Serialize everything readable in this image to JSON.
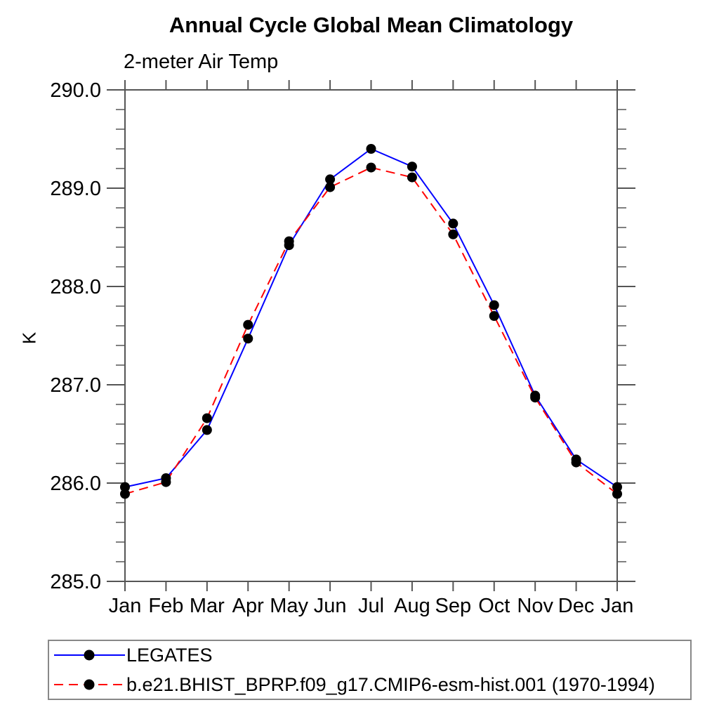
{
  "title": "Annual Cycle Global Mean Climatology",
  "subtitle": "2-meter Air Temp",
  "ylabel": "K",
  "colors": {
    "obs_line": "#0000ff",
    "model_line": "#ff0000",
    "marker": "#000000",
    "axis": "#555555",
    "text": "#000000",
    "legend_border": "#888888"
  },
  "legend": {
    "entries": [
      {
        "label": "LEGATES",
        "line_style": "solid",
        "color": "#0000ff",
        "marker": "black-dot"
      },
      {
        "label": "b.e21.BHIST_BPRP.f09_g17.CMIP6-esm-hist.001 (1970-1994)",
        "line_style": "dashed",
        "color": "#ff0000",
        "marker": "black-dot"
      }
    ]
  },
  "chart_data": {
    "type": "line",
    "title": "Annual Cycle Global Mean Climatology",
    "subtitle": "2-meter Air Temp",
    "xlabel": "",
    "ylabel": "K",
    "categories": [
      "Jan",
      "Feb",
      "Mar",
      "Apr",
      "May",
      "Jun",
      "Jul",
      "Aug",
      "Sep",
      "Oct",
      "Nov",
      "Dec",
      "Jan"
    ],
    "series": [
      {
        "name": "LEGATES",
        "color": "#0000ff",
        "style": "solid",
        "marker": "circle",
        "values": [
          285.96,
          286.05,
          286.54,
          287.47,
          288.42,
          289.09,
          289.4,
          289.22,
          288.64,
          287.81,
          286.89,
          286.24,
          285.96
        ]
      },
      {
        "name": "b.e21.BHIST_BPRP.f09_g17.CMIP6-esm-hist.001 (1970-1994)",
        "color": "#ff0000",
        "style": "dashed",
        "marker": "circle",
        "values": [
          285.89,
          286.01,
          286.66,
          287.61,
          288.46,
          289.01,
          289.21,
          289.11,
          288.53,
          287.7,
          286.87,
          286.21,
          285.89
        ]
      }
    ],
    "ylim": [
      285.0,
      290.0
    ],
    "yticks_major": [
      285.0,
      286.0,
      287.0,
      288.0,
      289.0,
      290.0
    ],
    "ytick_labels": [
      "285.0",
      "286.0",
      "287.0",
      "288.0",
      "289.0",
      "290.0"
    ],
    "ytick_minor_step": 0.2,
    "grid": false,
    "legend_position": "bottom"
  }
}
